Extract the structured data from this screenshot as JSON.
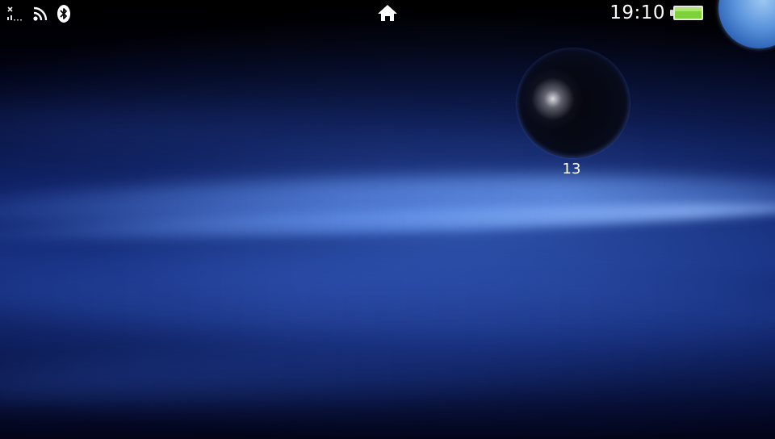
{
  "status_bar": {
    "time": "19:10",
    "signal_icon": "no-signal-icon",
    "wifi_icon": "wifi-icon",
    "bluetooth_icon": "bluetooth-icon",
    "home_icon": "home-icon",
    "battery_icon": "battery-icon",
    "battery_level": 1.0,
    "battery_color": "#7fd13b"
  },
  "home": {
    "app_bubbles": [
      {
        "label": "13"
      }
    ],
    "page_indicator_icon": "page-bubble-icon"
  },
  "colors": {
    "background_top": "#000000",
    "background_wave": "#4f7fe0",
    "text": "#ffffff"
  }
}
